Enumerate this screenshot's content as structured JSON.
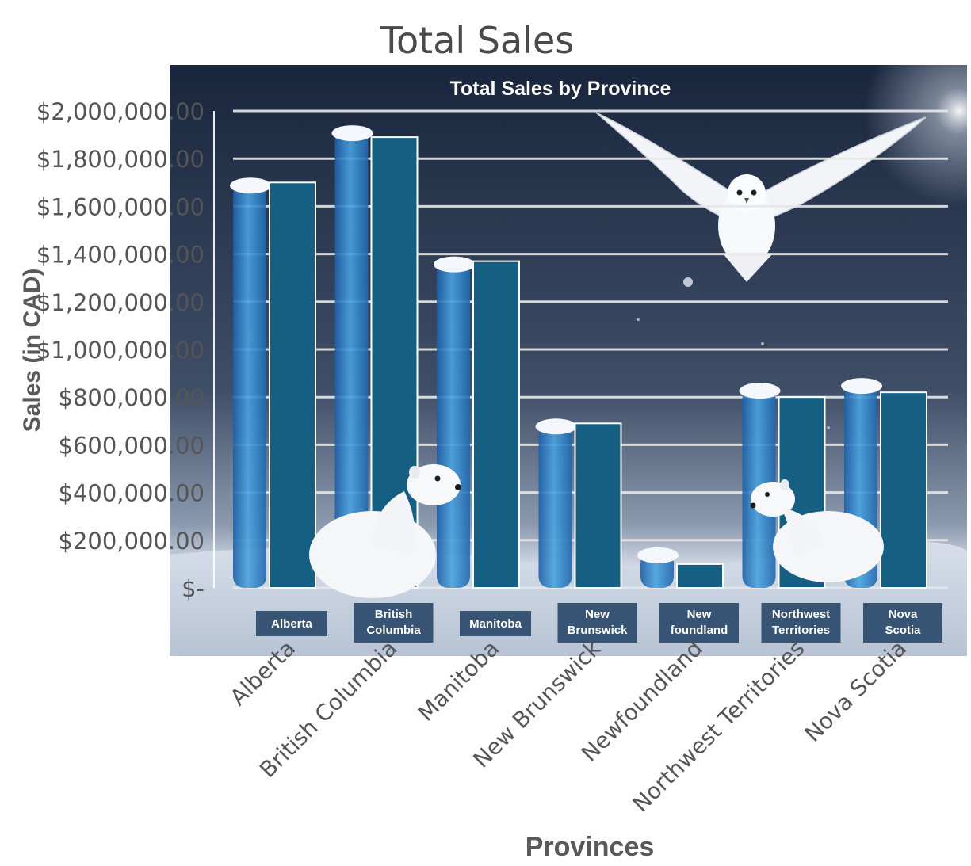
{
  "colors": {
    "bar": "#156082",
    "ice_bar": "#2e86c9",
    "grid": "#e8e8e8",
    "axis_text": "#595959",
    "title_text": "#4a4a4a",
    "photo_sky_top": "#1b2a44",
    "photo_sky_bottom": "#46556e",
    "snow": "#e9edf3",
    "label_box": "#2b4a6b"
  },
  "decorations": [
    "snowy-owl",
    "white-ermine",
    "white-ermine",
    "ice-pillars"
  ],
  "chart_data": {
    "type": "bar",
    "title": "Total Sales",
    "subtitle": "Total Sales by Province",
    "xlabel": "Provinces",
    "ylabel": "Sales (in CAD)",
    "categories": [
      "Alberta",
      "British Columbia",
      "Manitoba",
      "New Brunswick",
      "Newfoundland",
      "Northwest Territories",
      "Nova Scotia"
    ],
    "inner_labels": [
      [
        "Alberta"
      ],
      [
        "British",
        "Columbia"
      ],
      [
        "Manitoba"
      ],
      [
        "New",
        "Brunswick"
      ],
      [
        "New",
        "foundland"
      ],
      [
        "Northwest",
        "Territories"
      ],
      [
        "Nova",
        "Scotia"
      ]
    ],
    "values": [
      1700000,
      1890000,
      1370000,
      690000,
      100000,
      800000,
      820000
    ],
    "ice_values": [
      1700000,
      1920000,
      1370000,
      690000,
      150000,
      840000,
      860000
    ],
    "ylim": [
      0,
      2000000
    ],
    "yticks": [
      0,
      200000,
      400000,
      600000,
      800000,
      1000000,
      1200000,
      1400000,
      1600000,
      1800000,
      2000000
    ],
    "ytick_labels": [
      "$-",
      "$200,000.00",
      "$400,000.00",
      "$600,000.00",
      "$800,000.00",
      "$1,000,000.00",
      "$1,200,000.00",
      "$1,400,000.00",
      "$1,600,000.00",
      "$1,800,000.00",
      "$2,000,000.00"
    ],
    "grid": true,
    "legend": "none"
  }
}
